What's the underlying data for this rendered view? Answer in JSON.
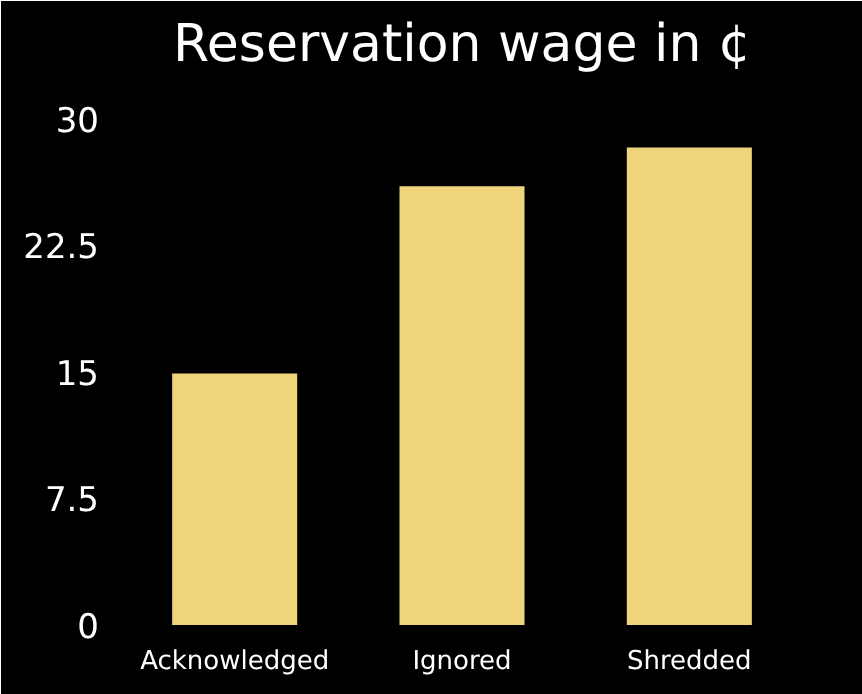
{
  "chart_data": {
    "type": "bar",
    "title": "Reservation wage in ¢",
    "categories": [
      "Acknowledged",
      "Ignored",
      "Shredded"
    ],
    "values": [
      14.9,
      26.0,
      28.3
    ],
    "color": "#f0d47c",
    "ylim": [
      0,
      32
    ],
    "yticks": [
      0,
      7.5,
      15,
      22.5,
      30
    ],
    "grid": false
  }
}
